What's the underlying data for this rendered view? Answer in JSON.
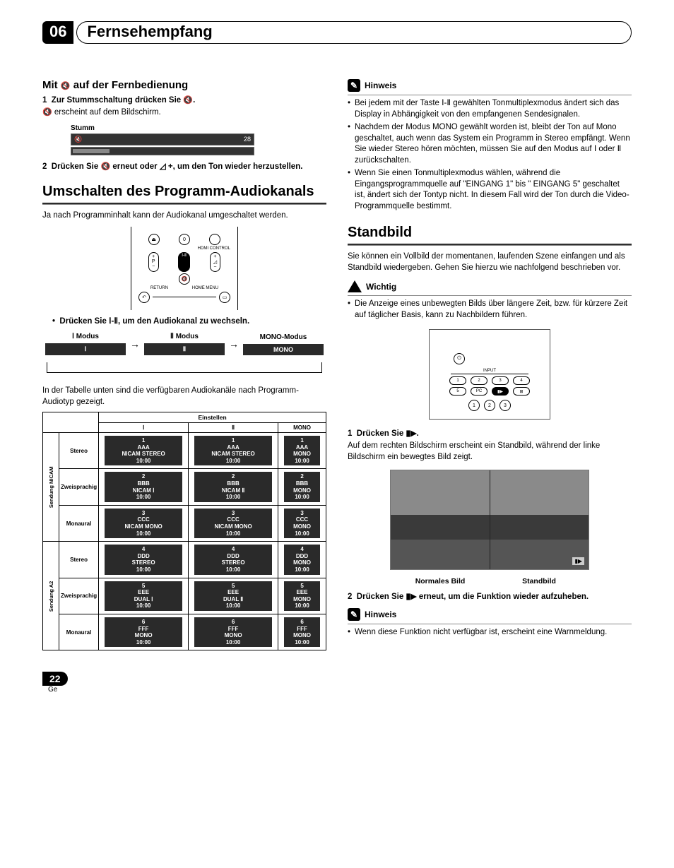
{
  "chapter": {
    "number": "06",
    "title": "Fernsehempfang"
  },
  "left": {
    "remote_heading_pre": "Mit ",
    "remote_heading_post": " auf der Fernbedienung",
    "step1": "Zur Stummschaltung drücken Sie ",
    "step1_suffix": ".",
    "step1_body": " erscheint auf dem Bildschirm.",
    "mute_box": {
      "label": "Stumm",
      "value": "28"
    },
    "step2_pre": "Drücken Sie ",
    "step2_mid": " erneut oder ",
    "step2_post": " +, um den Ton wieder herzustellen.",
    "section_audio": "Umschalten des Programm-Audiokanals",
    "audio_intro": "Ja nach Programminhalt kann der Audiokanal umgeschaltet werden.",
    "press_line_pre": "Drücken Sie ",
    "press_symbol": "Ⅰ-Ⅱ",
    "press_line_post": ", um den Audiokanal zu wechseln.",
    "modes": {
      "m1_label": "Ⅰ Modus",
      "m1_cell": "Ⅰ",
      "m2_label": "Ⅱ Modus",
      "m2_cell": "Ⅱ",
      "m3_label": "MONO-Modus",
      "m3_cell": "MONO"
    },
    "table_intro": "In der Tabelle unten sind die verfügbaren Audiokanäle nach Programm-Audiotyp gezeigt.",
    "table": {
      "einstellen": "Einstellen",
      "col1": "Ⅰ",
      "col2": "Ⅱ",
      "col3": "MONO",
      "group1": "Sendung NICAM",
      "group2": "Sendung A2",
      "row_stereo": "Stereo",
      "row_zwei": "Zweisprachig",
      "row_mono": "Monaural"
    },
    "cells": {
      "r1c1": [
        "1",
        "AAA",
        "NICAM STEREO",
        "10:00"
      ],
      "r1c2": [
        "1",
        "AAA",
        "NICAM STEREO",
        "10:00"
      ],
      "r1c3": [
        "1",
        "AAA",
        "MONO",
        "10:00"
      ],
      "r2c1": [
        "2",
        "BBB",
        "NICAM Ⅰ",
        "10:00"
      ],
      "r2c2": [
        "2",
        "BBB",
        "NICAM Ⅱ",
        "10:00"
      ],
      "r2c3": [
        "2",
        "BBB",
        "MONO",
        "10:00"
      ],
      "r3c1": [
        "3",
        "CCC",
        "NICAM MONO",
        "10:00"
      ],
      "r3c2": [
        "3",
        "CCC",
        "NICAM MONO",
        "10:00"
      ],
      "r3c3": [
        "3",
        "CCC",
        "MONO",
        "10:00"
      ],
      "r4c1": [
        "4",
        "DDD",
        "STEREO",
        "10:00"
      ],
      "r4c2": [
        "4",
        "DDD",
        "STEREO",
        "10:00"
      ],
      "r4c3": [
        "4",
        "DDD",
        "MONO",
        "10:00"
      ],
      "r5c1": [
        "5",
        "EEE",
        "DUAL Ⅰ",
        "10:00"
      ],
      "r5c2": [
        "5",
        "EEE",
        "DUAL Ⅱ",
        "10:00"
      ],
      "r5c3": [
        "5",
        "EEE",
        "MONO",
        "10:00"
      ],
      "r6c1": [
        "6",
        "FFF",
        "MONO",
        "10:00"
      ],
      "r6c2": [
        "6",
        "FFF",
        "MONO",
        "10:00"
      ],
      "r6c3": [
        "6",
        "FFF",
        "MONO",
        "10:00"
      ]
    }
  },
  "right": {
    "hinweis_label": "Hinweis",
    "note1_pre": "Bei jedem mit der Taste ",
    "note1_sym": "Ⅰ-Ⅱ",
    "note1_post": " gewählten Tonmultiplexmodus ändert sich das Display in Abhängigkeit von den empfangenen Sendesignalen.",
    "note2_pre": "Nachdem der Modus MONO gewählt worden ist, bleibt der Ton auf Mono geschaltet, auch wenn das System ein Programm in Stereo empfängt. Wenn Sie wieder Stereo hören möchten, müssen Sie auf den Modus auf ",
    "note2_sym": "Ⅰ oder Ⅱ",
    "note2_post": " zurückschalten.",
    "note3": "Wenn Sie einen Tonmultiplexmodus wählen, während die Eingangsprogrammquelle auf \"EINGANG 1\" bis \" EINGANG 5\" geschaltet ist, ändert sich der Tontyp nicht. In diesem Fall wird der Ton durch die Video-Programmquelle bestimmt.",
    "section_still": "Standbild",
    "still_intro": "Sie können ein Vollbild der momentanen, laufenden Szene einfangen und als Standbild wiedergeben. Gehen Sie hierzu wie nachfolgend beschrieben vor.",
    "wichtig_label": "Wichtig",
    "wichtig_text": "Die Anzeige eines unbewegten Bilds über längere Zeit, bzw. für kürzere Zeit auf täglicher Basis, kann zu Nachbildern führen.",
    "remote2": {
      "input": "INPUT",
      "buttons": [
        "1",
        "2",
        "3",
        "4",
        "5",
        "PC"
      ],
      "circles": [
        "1",
        "2",
        "3"
      ]
    },
    "step1_pre": "Drücken Sie ",
    "step1_post": ".",
    "step1_body": "Auf dem rechten Bildschirm erscheint ein Standbild, während der linke Bildschirm ein bewegtes Bild zeigt.",
    "freeze_labels": {
      "left": "Normales Bild",
      "right": "Standbild"
    },
    "step2_pre": "Drücken Sie ",
    "step2_post": " erneut, um die Funktion wieder aufzuheben.",
    "final_note": "Wenn diese Funktion nicht verfügbar ist, erscheint eine Warnmeldung."
  },
  "footer": {
    "page": "22",
    "lang": "Ge"
  },
  "colors": {
    "dark_cell": "#2a2a2a",
    "text": "#000000",
    "bg": "#ffffff"
  }
}
